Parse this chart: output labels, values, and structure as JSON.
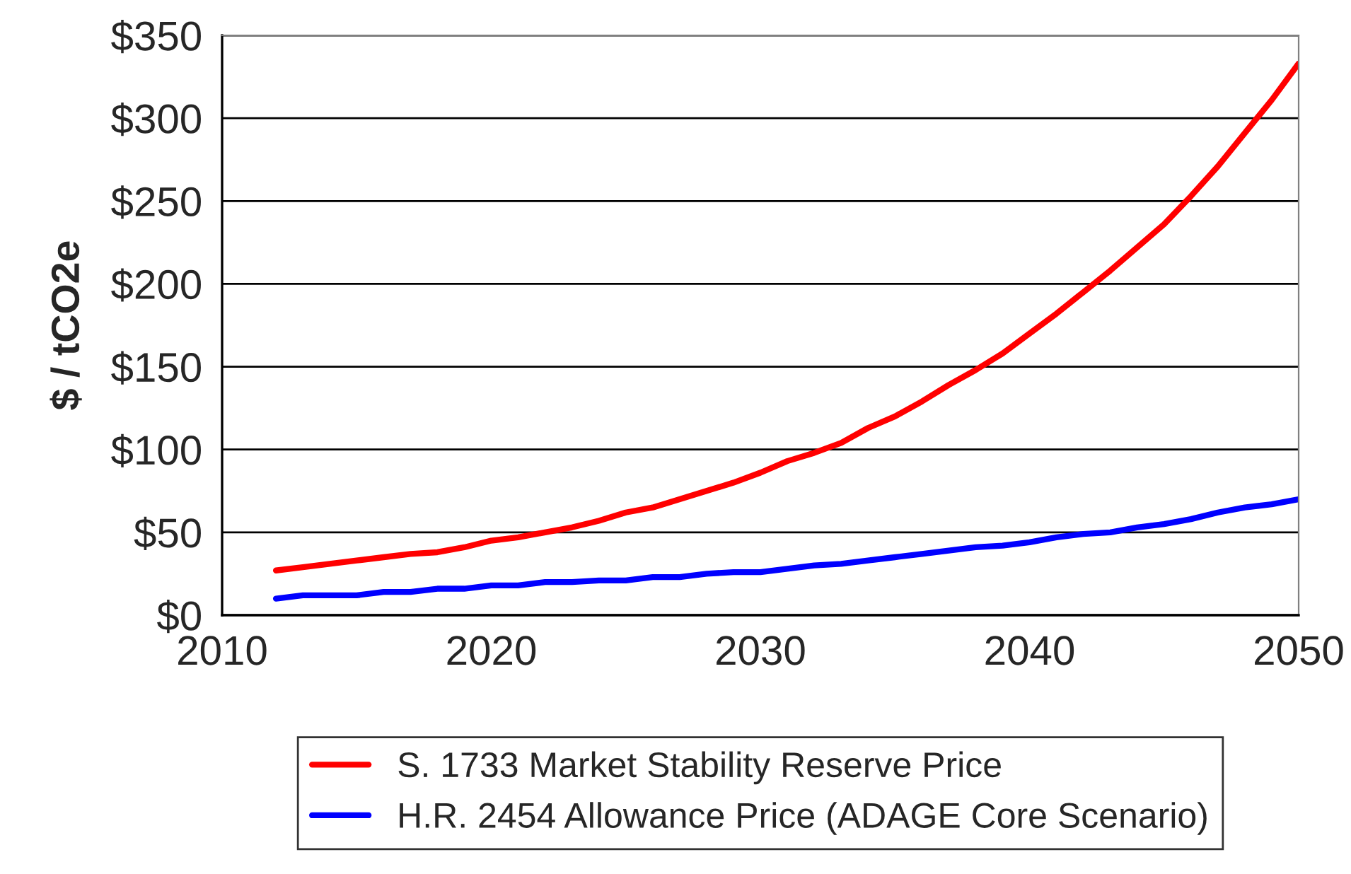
{
  "chart_data": {
    "type": "line",
    "ylabel": "$ / tCO2e",
    "x": [
      2012,
      2013,
      2014,
      2015,
      2016,
      2017,
      2018,
      2019,
      2020,
      2021,
      2022,
      2023,
      2024,
      2025,
      2026,
      2027,
      2028,
      2029,
      2030,
      2031,
      2032,
      2033,
      2034,
      2035,
      2036,
      2037,
      2038,
      2039,
      2040,
      2041,
      2042,
      2043,
      2044,
      2045,
      2046,
      2047,
      2048,
      2049,
      2050
    ],
    "series": [
      {
        "name": "S. 1733 Market Stability Reserve Price",
        "color": "#ff0000",
        "values": [
          27,
          29,
          31,
          33,
          35,
          37,
          38,
          41,
          45,
          47,
          50,
          53,
          57,
          62,
          65,
          70,
          75,
          80,
          86,
          93,
          98,
          104,
          113,
          120,
          129,
          139,
          148,
          158,
          170,
          182,
          195,
          208,
          222,
          236,
          253,
          271,
          291,
          311,
          333
        ]
      },
      {
        "name": "H.R. 2454 Allowance Price (ADAGE Core Scenario)",
        "color": "#0000ff",
        "values": [
          10,
          12,
          12,
          12,
          14,
          14,
          16,
          16,
          18,
          18,
          20,
          20,
          21,
          21,
          23,
          23,
          25,
          26,
          26,
          28,
          30,
          31,
          33,
          35,
          37,
          39,
          41,
          42,
          44,
          47,
          49,
          50,
          53,
          55,
          58,
          62,
          65,
          67,
          70
        ]
      }
    ],
    "xlim": [
      2010,
      2050
    ],
    "xticks": [
      2010,
      2020,
      2030,
      2040,
      2050
    ],
    "ylim": [
      0,
      350
    ],
    "yticks": [
      {
        "value": 0,
        "label": "$0"
      },
      {
        "value": 50,
        "label": "$50"
      },
      {
        "value": 100,
        "label": "$100"
      },
      {
        "value": 150,
        "label": "$150"
      },
      {
        "value": 200,
        "label": "$200"
      },
      {
        "value": 250,
        "label": "$250"
      },
      {
        "value": 300,
        "label": "$300"
      },
      {
        "value": 350,
        "label": "$350"
      }
    ],
    "grid": "y",
    "legend": "bottom",
    "marker": "none",
    "line_style": "solid"
  }
}
